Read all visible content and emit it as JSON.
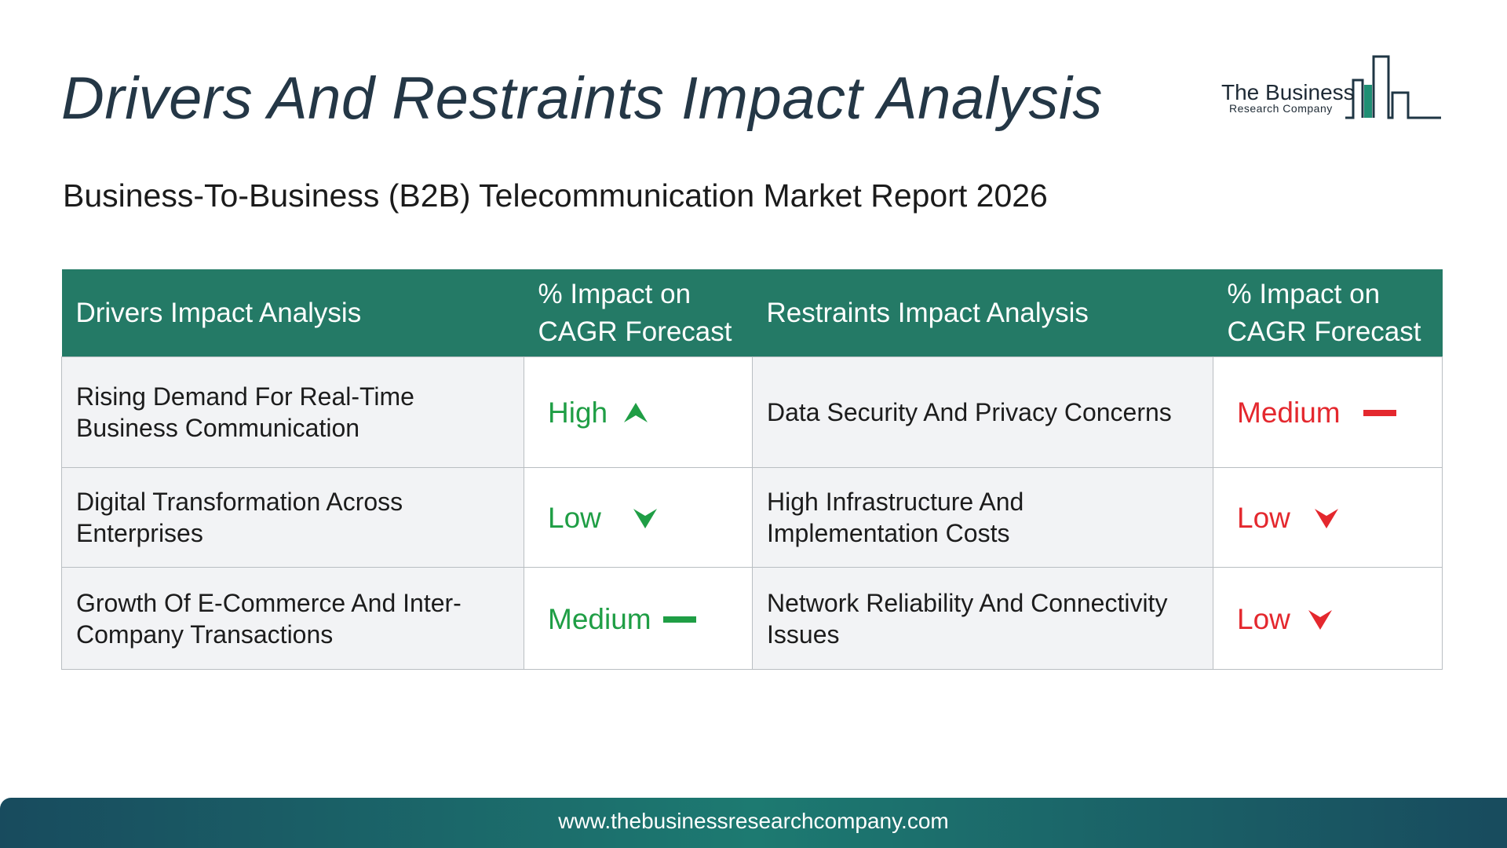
{
  "header": {
    "title": "Drivers And Restraints Impact Analysis",
    "subtitle": "Business-To-Business (B2B) Telecommunication Market Report 2026"
  },
  "logo": {
    "name_line": "The Business",
    "tagline": "Research Company"
  },
  "table": {
    "columns": [
      "Drivers Impact Analysis",
      "% Impact on CAGR Forecast",
      "Restraints Impact Analysis",
      "% Impact on CAGR Forecast"
    ],
    "rows": [
      {
        "driver": "Rising Demand For Real-Time Business Communication",
        "driver_impact": "High",
        "driver_icon": "arrow-up-icon",
        "restraint": "Data Security And Privacy Concerns",
        "restraint_impact": "Medium",
        "restraint_icon": "dash-icon"
      },
      {
        "driver": "Digital Transformation Across Enterprises",
        "driver_impact": "Low",
        "driver_icon": "arrow-down-icon",
        "restraint": "High Infrastructure And Implementation Costs",
        "restraint_impact": "Low",
        "restraint_icon": "arrow-down-icon"
      },
      {
        "driver": "Growth Of E-Commerce And Inter-Company Transactions",
        "driver_impact": "Medium",
        "driver_icon": "dash-icon",
        "restraint": "Network Reliability And Connectivity Issues",
        "restraint_impact": "Low",
        "restraint_icon": "arrow-down-icon"
      }
    ]
  },
  "footer": {
    "url": "www.thebusinessresearchcompany.com"
  },
  "colors": {
    "header_bg": "#247a66",
    "driver_impact": "#1f9e45",
    "restraint_impact": "#e4282e",
    "title": "#243746"
  }
}
